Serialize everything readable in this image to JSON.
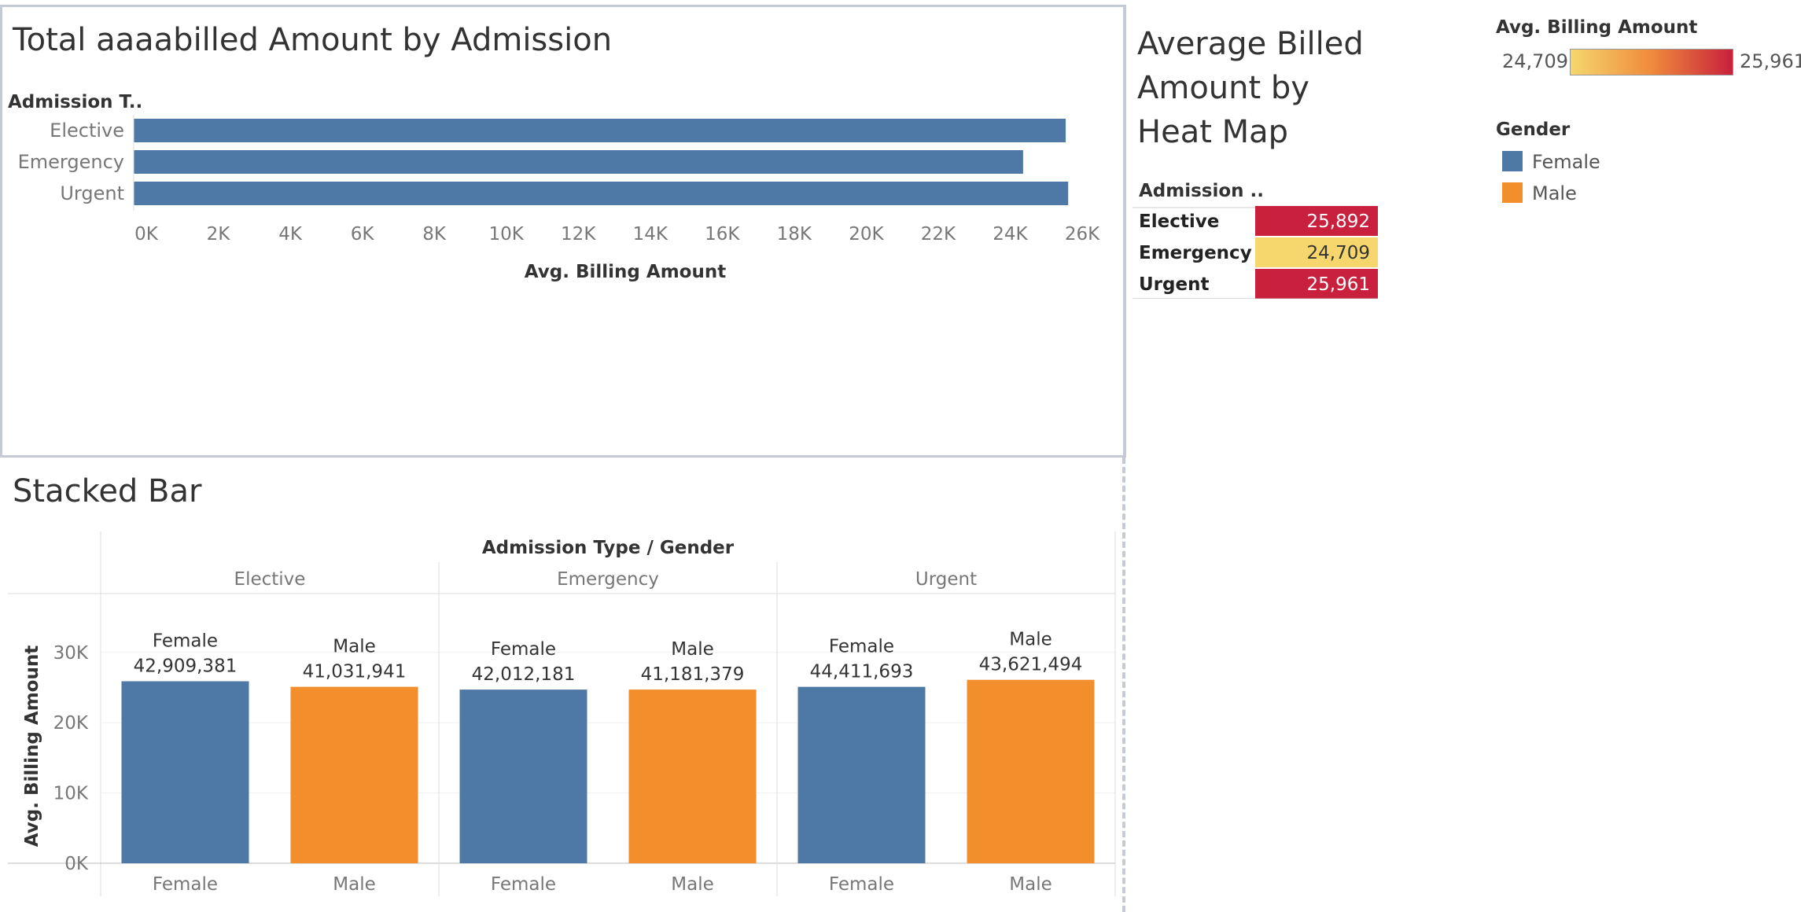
{
  "bar_chart": {
    "title": "Total aaaabilled Amount by Admission",
    "row_header": "Admission T..",
    "x_label": "Avg. Billing Amount"
  },
  "heatmap": {
    "title_lines": [
      "Average Billed",
      "Amount by",
      "Heat Map"
    ],
    "header": "Admission ..",
    "rows": [
      {
        "label": "Elective",
        "value": "25,892"
      },
      {
        "label": "Emergency",
        "value": "24,709"
      },
      {
        "label": "Urgent",
        "value": "25,961"
      }
    ]
  },
  "color_legend": {
    "title": "Avg. Billing Amount",
    "min": "24,709",
    "max": "25,961",
    "colors": [
      "#f5d76e",
      "#f08a3c",
      "#c8203d"
    ]
  },
  "gender_legend": {
    "title": "Gender",
    "items": [
      {
        "label": "Female",
        "color": "#4e79a7"
      },
      {
        "label": "Male",
        "color": "#f28e2b"
      }
    ]
  },
  "stacked": {
    "title": "Stacked Bar",
    "header": "Admission Type  /  Gender",
    "y_label": "Avg. Billing Amount"
  },
  "chart_data": [
    {
      "type": "bar",
      "orientation": "horizontal",
      "title": "Total aaaabilled Amount by Admission",
      "categories": [
        "Elective",
        "Emergency",
        "Urgent"
      ],
      "values": [
        25892,
        24709,
        25961
      ],
      "xlabel": "Avg. Billing Amount",
      "ylabel": "Admission T..",
      "xlim": [
        0,
        27000
      ],
      "ticks": [
        "0K",
        "2K",
        "4K",
        "6K",
        "8K",
        "10K",
        "12K",
        "14K",
        "16K",
        "18K",
        "20K",
        "22K",
        "24K",
        "26K"
      ],
      "color": "#4e79a7"
    },
    {
      "type": "heatmap",
      "title": "Average Billed Amount by Heat Map",
      "categories": [
        "Elective",
        "Emergency",
        "Urgent"
      ],
      "values": [
        25892,
        24709,
        25961
      ]
    },
    {
      "type": "bar",
      "title": "Stacked Bar",
      "groups": [
        "Elective",
        "Emergency",
        "Urgent"
      ],
      "subcategories": [
        "Female",
        "Male"
      ],
      "values": [
        [
          25892,
          25100
        ],
        [
          24709,
          24709
        ],
        [
          25100,
          26100
        ]
      ],
      "labels": [
        [
          "42,909,381",
          "41,031,941"
        ],
        [
          "42,012,181",
          "41,181,379"
        ],
        [
          "44,411,693",
          "43,621,494"
        ]
      ],
      "ylabel": "Avg. Billing Amount",
      "ylim": [
        0,
        30000
      ],
      "yticks": [
        "0K",
        "10K",
        "20K",
        "30K"
      ],
      "colors": {
        "Female": "#4e79a7",
        "Male": "#f28e2b"
      }
    }
  ]
}
